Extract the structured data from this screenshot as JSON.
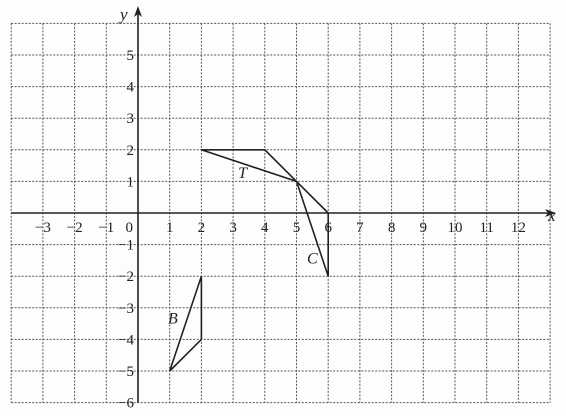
{
  "diagram": {
    "axes": {
      "x_label": "x",
      "y_label": "y",
      "x_range": [
        -4,
        13
      ],
      "y_range": [
        -6,
        6
      ],
      "x_tick_labels": [
        {
          "value": -3,
          "text": "−3"
        },
        {
          "value": -2,
          "text": "−2"
        },
        {
          "value": -1,
          "text": "−1"
        },
        {
          "value": 0,
          "text": "0"
        },
        {
          "value": 1,
          "text": "1"
        },
        {
          "value": 2,
          "text": "2"
        },
        {
          "value": 3,
          "text": "3"
        },
        {
          "value": 4,
          "text": "4"
        },
        {
          "value": 5,
          "text": "5"
        },
        {
          "value": 6,
          "text": "6"
        },
        {
          "value": 7,
          "text": "7"
        },
        {
          "value": 8,
          "text": "8"
        },
        {
          "value": 9,
          "text": "9"
        },
        {
          "value": 10,
          "text": "10"
        },
        {
          "value": 11,
          "text": "11"
        },
        {
          "value": 12,
          "text": "12"
        }
      ],
      "y_tick_labels": [
        {
          "value": 5,
          "text": "5"
        },
        {
          "value": 4,
          "text": "4"
        },
        {
          "value": 3,
          "text": "3"
        },
        {
          "value": 2,
          "text": "2"
        },
        {
          "value": 1,
          "text": "1"
        },
        {
          "value": -1,
          "text": "−1"
        },
        {
          "value": -2,
          "text": "−2"
        },
        {
          "value": -3,
          "text": "−3"
        },
        {
          "value": -4,
          "text": "−4"
        },
        {
          "value": -5,
          "text": "−5"
        },
        {
          "value": -6,
          "text": "−6"
        }
      ]
    },
    "shapes": [
      {
        "id": "T",
        "label": "T",
        "vertices": [
          [
            2,
            2
          ],
          [
            4,
            2
          ],
          [
            5,
            1
          ]
        ],
        "label_at": [
          3.3,
          1.1
        ]
      },
      {
        "id": "C",
        "label": "C",
        "vertices": [
          [
            5,
            1
          ],
          [
            6,
            0
          ],
          [
            6,
            -2
          ]
        ],
        "label_at": [
          5.5,
          -1.6
        ]
      },
      {
        "id": "B",
        "label": "B",
        "vertices": [
          [
            2,
            -2
          ],
          [
            2,
            -4
          ],
          [
            1,
            -5
          ]
        ],
        "label_at": [
          1.1,
          -3.5
        ]
      }
    ]
  }
}
